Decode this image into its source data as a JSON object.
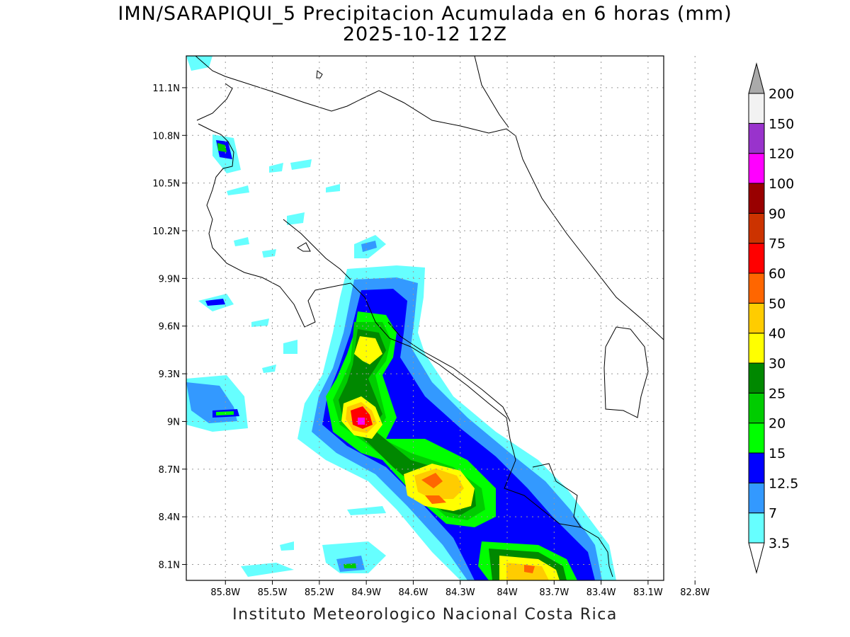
{
  "title_line1": "IMN/SARAPIQUI_5 Precipitacion Acumulada en 6 horas (mm)",
  "title_line2": "2025-10-12 12Z",
  "footer": "Instituto Meteorologico Nacional Costa Rica",
  "map": {
    "lon_range": [
      -86.05,
      -83.0
    ],
    "lat_range": [
      8.0,
      11.3
    ],
    "lat_ticks": [
      {
        "value": 11.1,
        "label": "11.1N"
      },
      {
        "value": 10.8,
        "label": "10.8N"
      },
      {
        "value": 10.5,
        "label": "10.5N"
      },
      {
        "value": 10.2,
        "label": "10.2N"
      },
      {
        "value": 9.9,
        "label": "9.9N"
      },
      {
        "value": 9.6,
        "label": "9.6N"
      },
      {
        "value": 9.3,
        "label": "9.3N"
      },
      {
        "value": 9.0,
        "label": "9N"
      },
      {
        "value": 8.7,
        "label": "8.7N"
      },
      {
        "value": 8.4,
        "label": "8.4N"
      },
      {
        "value": 8.1,
        "label": "8.1N"
      }
    ],
    "lon_ticks": [
      {
        "value": -85.8,
        "label": "85.8W"
      },
      {
        "value": -85.5,
        "label": "85.5W"
      },
      {
        "value": -85.2,
        "label": "85.2W"
      },
      {
        "value": -84.9,
        "label": "84.9W"
      },
      {
        "value": -84.6,
        "label": "84.6W"
      },
      {
        "value": -84.3,
        "label": "84.3W"
      },
      {
        "value": -84.0,
        "label": "84W"
      },
      {
        "value": -83.7,
        "label": "83.7W"
      },
      {
        "value": -83.4,
        "label": "83.4W"
      },
      {
        "value": -83.1,
        "label": "83.1W"
      },
      {
        "value": -82.8,
        "label": "82.8W"
      }
    ],
    "grid": true
  },
  "colorbar": {
    "levels": [
      "3.5",
      "7",
      "12.5",
      "15",
      "20",
      "25",
      "30",
      "40",
      "50",
      "60",
      "75",
      "90",
      "100",
      "120",
      "150",
      "200"
    ],
    "colors": [
      "#66ffff",
      "#3399ff",
      "#0000ff",
      "#00ff00",
      "#00cc00",
      "#008800",
      "#ffff00",
      "#ffcc00",
      "#ff6600",
      "#ff0000",
      "#cc3300",
      "#990000",
      "#ff00ff",
      "#9933cc",
      "#f2f2f2",
      "#aaaaaa"
    ],
    "under_color": "#ffffff"
  }
}
